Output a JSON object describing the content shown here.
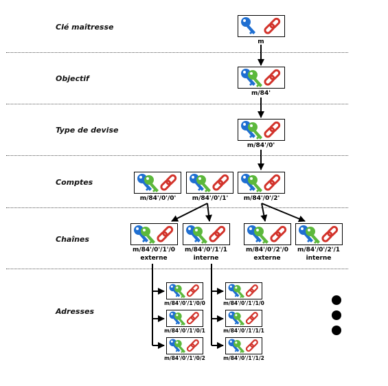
{
  "levels": {
    "master": "Clé maîtresse",
    "purpose": "Objectif",
    "coin_type": "Type de devise",
    "accounts": "Comptes",
    "chains": "Chaînes",
    "addresses": "Adresses"
  },
  "paths": {
    "master": "m",
    "purpose": "m/84'",
    "coin_type": "m/84'/0'",
    "account_0": "m/84'/0'/0'",
    "account_1": "m/84'/0'/1'",
    "account_2": "m/84'/0'/2'",
    "chain_1_0": "m/84'/0'/1'/0",
    "chain_1_1": "m/84'/0'/1'/1",
    "chain_2_0": "m/84'/0'/2'/0",
    "chain_2_1": "m/84'/0'/2'/1",
    "addr_1_0_0": "m/84'/0'/1'/0/0",
    "addr_1_0_1": "m/84'/0'/1'/0/1",
    "addr_1_0_2": "m/84'/0'/1'/0/2",
    "addr_1_1_0": "m/84'/0'/1'/1/0",
    "addr_1_1_1": "m/84'/0'/1'/1/1",
    "addr_1_1_2": "m/84'/0'/1'/1/2"
  },
  "chain_types": {
    "external": "externe",
    "internal": "interne"
  },
  "colors": {
    "blue_key": "#1f6fd1",
    "green_key": "#5cb83c",
    "red_chain": "#d2332b",
    "border": "#000000"
  },
  "icons": {
    "master": [
      "blue-key-icon",
      "red-chain-link-icon"
    ],
    "derived": [
      "blue-key-icon",
      "green-key-icon",
      "red-chain-link-icon"
    ]
  }
}
